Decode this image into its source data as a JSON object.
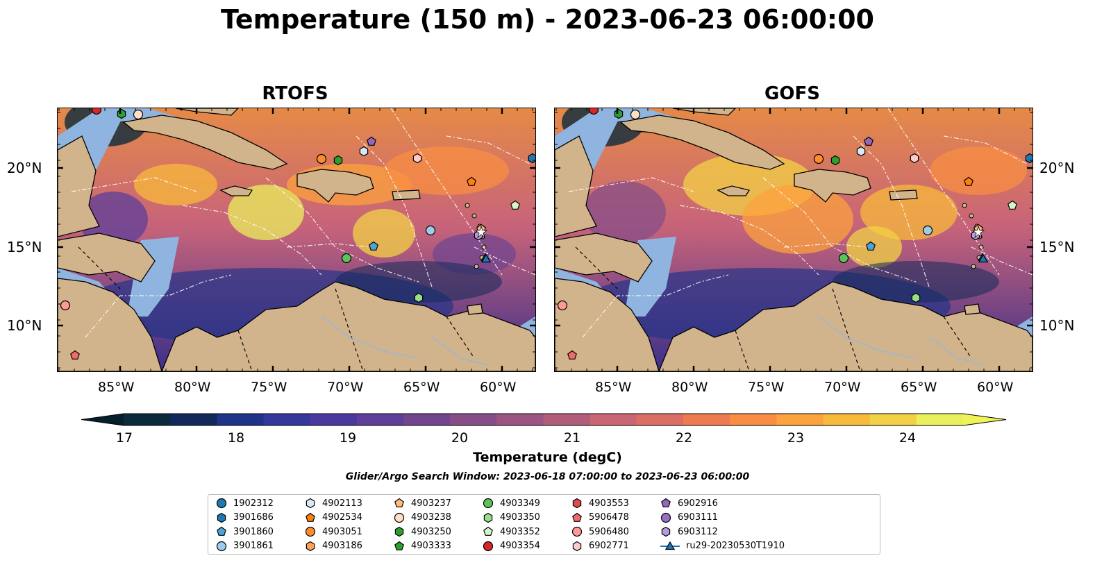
{
  "title": "Temperature (150 m) - 2023-06-23 06:00:00",
  "panels": [
    {
      "title": "RTOFS"
    },
    {
      "title": "GOFS"
    }
  ],
  "lon_labels": [
    "85°W",
    "80°W",
    "75°W",
    "70°W",
    "65°W",
    "60°W"
  ],
  "lat_labels": [
    "20°N",
    "15°N",
    "10°N"
  ],
  "colorbar": {
    "label": "Temperature (degC)",
    "ticks": [
      "17",
      "18",
      "19",
      "20",
      "21",
      "22",
      "23",
      "24"
    ],
    "min": 17,
    "max": 24.5,
    "step": 0.5,
    "colors": [
      "#0b2b3c",
      "#12295a",
      "#1f3389",
      "#34389a",
      "#4a3a9d",
      "#5e3f99",
      "#71468f",
      "#874d87",
      "#9c5482",
      "#b15d7a",
      "#c86674",
      "#dc6f63",
      "#ee7b50",
      "#f88d43",
      "#fca23e",
      "#f8ba3b",
      "#f3d145",
      "#eaf05c"
    ]
  },
  "search_window": "Glider/Argo Search Window: 2023-06-18 07:00:00 to 2023-06-23 06:00:00",
  "legend": [
    {
      "label": "1902312",
      "shape": "circle",
      "color": "#1f77b4"
    },
    {
      "label": "3901686",
      "shape": "hexagon",
      "color": "#1f77b4"
    },
    {
      "label": "3901860",
      "shape": "pentagon",
      "color": "#4da3d8"
    },
    {
      "label": "3901861",
      "shape": "circle",
      "color": "#9fcbe8"
    },
    {
      "label": "4902113",
      "shape": "hexagon",
      "color": "#d6e9f8"
    },
    {
      "label": "4902534",
      "shape": "pentagon",
      "color": "#ff7f0e"
    },
    {
      "label": "4903051",
      "shape": "circle",
      "color": "#ff8c2a"
    },
    {
      "label": "4903186",
      "shape": "hexagon",
      "color": "#ffa35a"
    },
    {
      "label": "4903237",
      "shape": "pentagon",
      "color": "#ffbb78"
    },
    {
      "label": "4903238",
      "shape": "circle",
      "color": "#ffe0c4"
    },
    {
      "label": "4903250",
      "shape": "hexagon",
      "color": "#2ca02c"
    },
    {
      "label": "4903333",
      "shape": "pentagon",
      "color": "#2ca02c"
    },
    {
      "label": "4903349",
      "shape": "circle",
      "color": "#5cc25c"
    },
    {
      "label": "4903350",
      "shape": "hexagon",
      "color": "#98df8a"
    },
    {
      "label": "4903352",
      "shape": "pentagon",
      "color": "#d4f5cc"
    },
    {
      "label": "4903354",
      "shape": "circle",
      "color": "#d62728"
    },
    {
      "label": "4903553",
      "shape": "hexagon",
      "color": "#e04a4a"
    },
    {
      "label": "5906478",
      "shape": "pentagon",
      "color": "#f06a6a"
    },
    {
      "label": "5906480",
      "shape": "circle",
      "color": "#ff9896"
    },
    {
      "label": "6902771",
      "shape": "hexagon",
      "color": "#ffcaca"
    },
    {
      "label": "6902916",
      "shape": "pentagon",
      "color": "#9467bd"
    },
    {
      "label": "6903111",
      "shape": "circle",
      "color": "#9b6fc6"
    },
    {
      "label": "6903112",
      "shape": "hexagon",
      "color": "#b79ad9"
    },
    {
      "label": "ru29-20230530T1910",
      "shape": "triangle-line",
      "color": "#1f77b4"
    }
  ],
  "land_color": "#d2b48c",
  "shelf_color": "#8fb4e0"
}
